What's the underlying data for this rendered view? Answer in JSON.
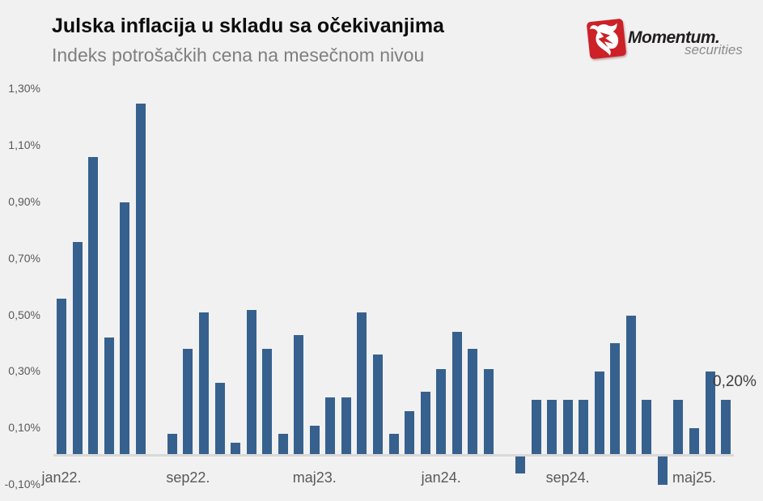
{
  "header": {
    "title": "Julska inflacija u skladu sa očekivanjima",
    "subtitle": "Indeks potrošačkih cena na mesečnom nivou"
  },
  "logo": {
    "brand": "Momentum.",
    "brand_sub": "securities",
    "icon": "bull-icon",
    "red": "#cb2127"
  },
  "chart_data": {
    "type": "bar",
    "title": "Julska inflacija u skladu sa očekivanjima",
    "subtitle": "Indeks potrošačkih cena na mesečnom nivou",
    "unit": "%",
    "categories": [
      "jan22.",
      "feb22.",
      "mar22.",
      "apr22.",
      "maj22.",
      "jun22.",
      "jul22.",
      "avg22.",
      "sep22.",
      "okt22.",
      "nov22.",
      "dec22.",
      "jan23.",
      "feb23.",
      "mar23.",
      "apr23.",
      "maj23.",
      "jun23.",
      "jul23.",
      "avg23.",
      "sep23.",
      "okt23.",
      "nov23.",
      "dec23.",
      "jan24.",
      "feb24.",
      "mar24.",
      "apr24.",
      "maj24.",
      "jun24.",
      "jul24.",
      "avg24.",
      "sep24.",
      "okt24.",
      "nov24.",
      "dec24.",
      "jan25.",
      "feb25.",
      "mar25.",
      "apr25.",
      "maj25.",
      "jun25.",
      "jul25."
    ],
    "values": [
      0.56,
      0.76,
      1.06,
      0.42,
      0.9,
      1.25,
      0.0,
      0.08,
      0.38,
      0.51,
      0.26,
      0.05,
      0.52,
      0.38,
      0.08,
      0.43,
      0.11,
      0.21,
      0.21,
      0.51,
      0.36,
      0.08,
      0.16,
      0.23,
      0.31,
      0.44,
      0.38,
      0.31,
      0.01,
      -0.06,
      0.2,
      0.2,
      0.2,
      0.2,
      0.3,
      0.4,
      0.5,
      0.2,
      -0.1,
      0.2,
      0.1,
      0.3,
      0.2
    ],
    "y_ticks": [
      "1,30%",
      "1,10%",
      "0,90%",
      "0,70%",
      "0,50%",
      "0,30%",
      "0,10%",
      "-0,10%"
    ],
    "y_tick_values": [
      1.3,
      1.1,
      0.9,
      0.7,
      0.5,
      0.3,
      0.1,
      -0.1
    ],
    "x_tick_labels": [
      "jan22.",
      "sep22.",
      "maj23.",
      "jan24.",
      "sep24.",
      "maj25."
    ],
    "x_tick_indices": [
      0,
      8,
      16,
      24,
      32,
      40
    ],
    "last_point_label": "0,20%",
    "ylim": [
      -0.1,
      1.3
    ],
    "gridlines": false,
    "legend": "none",
    "bar_color": "#36618e",
    "background_color": "#f1f1f1",
    "axis_line_color": "#d9d9d9"
  }
}
